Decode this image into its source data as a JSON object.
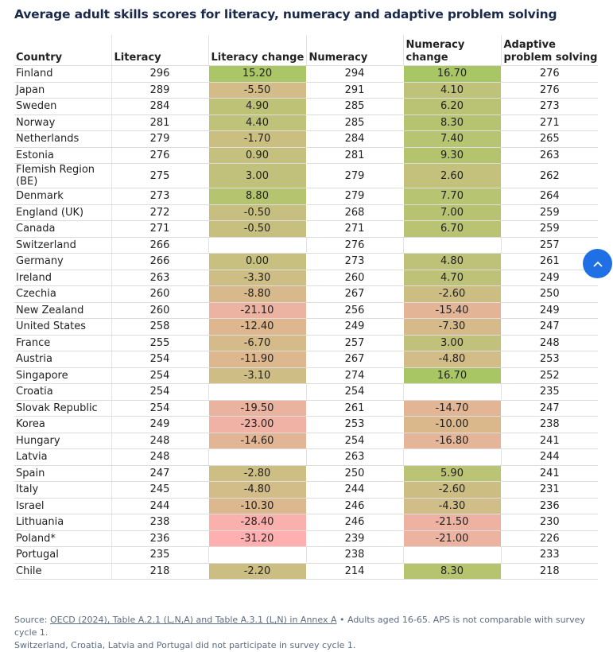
{
  "title": "Average adult skills scores for literacy, numeracy and adaptive problem solving",
  "chart_data": {
    "type": "table",
    "columns": [
      "Country",
      "Literacy",
      "Literacy change",
      "Numeracy",
      "Numeracy change",
      "Adaptive problem solving"
    ],
    "rows": [
      [
        "Finland",
        "296",
        "15.20",
        "294",
        "16.70",
        "276"
      ],
      [
        "Japan",
        "289",
        "-5.50",
        "291",
        "4.10",
        "276"
      ],
      [
        "Sweden",
        "284",
        "4.90",
        "285",
        "6.20",
        "273"
      ],
      [
        "Norway",
        "281",
        "4.40",
        "285",
        "8.30",
        "271"
      ],
      [
        "Netherlands",
        "279",
        "-1.70",
        "284",
        "7.40",
        "265"
      ],
      [
        "Estonia",
        "276",
        "0.90",
        "281",
        "9.30",
        "263"
      ],
      [
        "Flemish Region (BE)",
        "275",
        "3.00",
        "279",
        "2.60",
        "262"
      ],
      [
        "Denmark",
        "273",
        "8.80",
        "279",
        "7.70",
        "264"
      ],
      [
        "England (UK)",
        "272",
        "-0.50",
        "268",
        "7.00",
        "259"
      ],
      [
        "Canada",
        "271",
        "-0.50",
        "271",
        "6.70",
        "259"
      ],
      [
        "Switzerland",
        "266",
        "",
        "276",
        "",
        "257"
      ],
      [
        "Germany",
        "266",
        "0.00",
        "273",
        "4.80",
        "261"
      ],
      [
        "Ireland",
        "263",
        "-3.30",
        "260",
        "4.70",
        "249"
      ],
      [
        "Czechia",
        "260",
        "-8.80",
        "267",
        "-2.60",
        "250"
      ],
      [
        "New Zealand",
        "260",
        "-21.10",
        "256",
        "-15.40",
        "249"
      ],
      [
        "United States",
        "258",
        "-12.40",
        "249",
        "-7.30",
        "247"
      ],
      [
        "France",
        "255",
        "-6.70",
        "257",
        "3.00",
        "248"
      ],
      [
        "Austria",
        "254",
        "-11.90",
        "267",
        "-4.80",
        "253"
      ],
      [
        "Singapore",
        "254",
        "-3.10",
        "274",
        "16.70",
        "252"
      ],
      [
        "Croatia",
        "254",
        "",
        "254",
        "",
        "235"
      ],
      [
        "Slovak Republic",
        "254",
        "-19.50",
        "261",
        "-14.70",
        "247"
      ],
      [
        "Korea",
        "249",
        "-23.00",
        "253",
        "-10.00",
        "238"
      ],
      [
        "Hungary",
        "248",
        "-14.60",
        "254",
        "-16.80",
        "241"
      ],
      [
        "Latvia",
        "248",
        "",
        "263",
        "",
        "244"
      ],
      [
        "Spain",
        "247",
        "-2.80",
        "250",
        "5.90",
        "241"
      ],
      [
        "Italy",
        "245",
        "-4.80",
        "244",
        "-2.60",
        "231"
      ],
      [
        "Israel",
        "244",
        "-10.30",
        "246",
        "-4.30",
        "236"
      ],
      [
        "Lithuania",
        "238",
        "-28.40",
        "246",
        "-21.50",
        "230"
      ],
      [
        "Poland*",
        "236",
        "-31.20",
        "239",
        "-21.00",
        "226"
      ],
      [
        "Portugal",
        "235",
        "",
        "238",
        "",
        "233"
      ],
      [
        "Chile",
        "218",
        "-2.20",
        "214",
        "8.30",
        "218"
      ]
    ],
    "color_scale": {
      "positive": "#a8c664",
      "neutral": "#c8c07e",
      "negative": "#d8ba8a",
      "very_negative": "#ffafb0"
    }
  },
  "footer": {
    "source_prefix": "Source: ",
    "source_link": "OECD (2024), Table A.2.1 (L,N,A) and Table A.3.1 (L,N) in Annex A",
    "note1": " • Adults aged 16-65. APS is not comparable with survey cycle 1.",
    "note2": "Switzerland, Croatia, Latvia and Portugal did not participate in survey cycle 1."
  },
  "scroll_top_icon": "chevron-up-icon"
}
